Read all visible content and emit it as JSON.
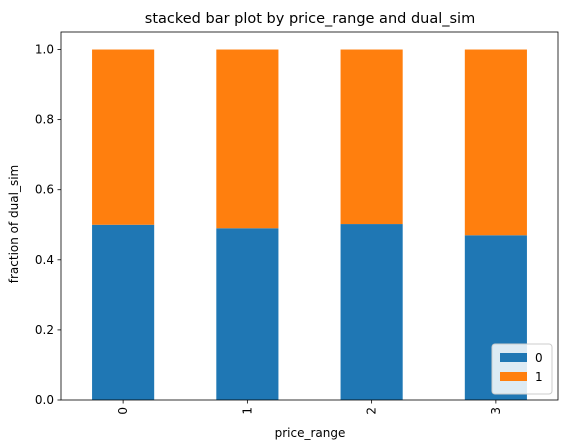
{
  "chart_data": {
    "type": "bar",
    "stacked": true,
    "title": "stacked bar plot by price_range and dual_sim",
    "xlabel": "price_range",
    "ylabel": "fraction of dual_sim",
    "categories": [
      "0",
      "1",
      "2",
      "3"
    ],
    "series": [
      {
        "name": "0",
        "color": "#1f77b4",
        "values": [
          0.5,
          0.49,
          0.502,
          0.47
        ]
      },
      {
        "name": "1",
        "color": "#ff7f0e",
        "values": [
          0.5,
          0.51,
          0.498,
          0.53
        ]
      }
    ],
    "ylim": [
      0,
      1.05
    ],
    "yticks": [
      "0.0",
      "0.2",
      "0.4",
      "0.6",
      "0.8",
      "1.0"
    ],
    "x_tick_rotation": "vertical",
    "legend_position": "lower right",
    "grid": false
  }
}
